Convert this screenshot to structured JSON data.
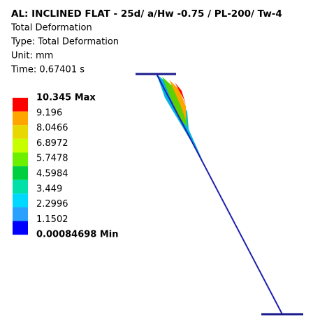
{
  "header": {
    "title": "AL: INCLINED FLAT - 25d/ a/Hw -0.75 / PL-200/ Tw-4",
    "lines": [
      "Total Deformation",
      "Type: Total Deformation",
      "Unit: mm",
      "Time: 0.67401 s"
    ]
  },
  "legend": {
    "labels": [
      "10.345 Max",
      "9.196",
      "8.0466",
      "6.8972",
      "5.7478",
      "4.5984",
      "3.449",
      "2.2996",
      "1.1502",
      "0.00084698 Min"
    ],
    "colors": [
      "#ff0000",
      "#ffa500",
      "#e6d800",
      "#c8ff00",
      "#6cf000",
      "#00d040",
      "#00e0a8",
      "#00d8ff",
      "#2aa0ff",
      "#0000ff"
    ]
  }
}
